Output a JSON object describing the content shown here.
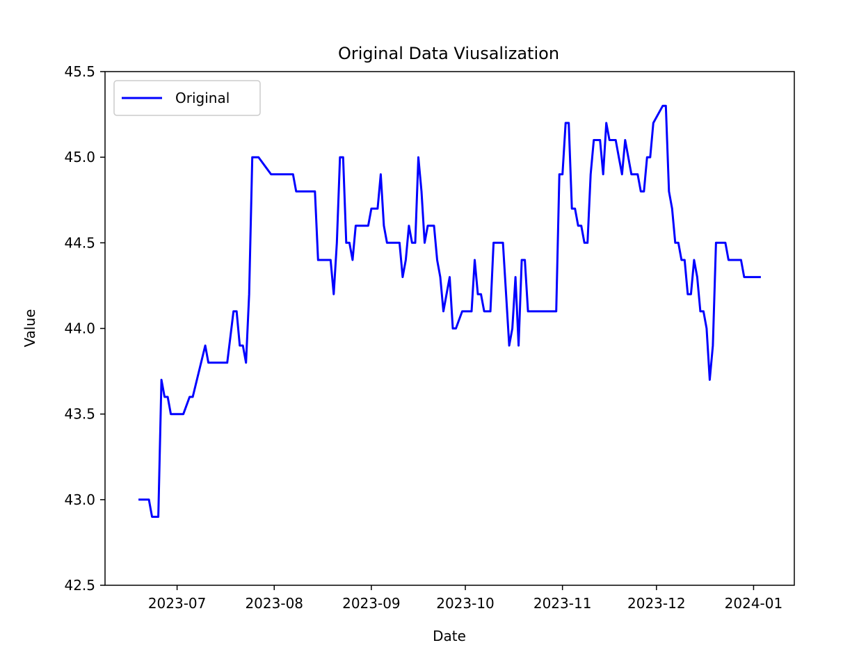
{
  "chart_data": {
    "type": "line",
    "title": "Original Data Viusalization",
    "xlabel": "Date",
    "ylabel": "Value",
    "ylim": [
      42.5,
      45.5
    ],
    "xlim": [
      "2023-06-08",
      "2024-01-14"
    ],
    "yticks": [
      42.5,
      43.0,
      43.5,
      44.0,
      44.5,
      45.0,
      45.5
    ],
    "ytick_labels": [
      "42.5",
      "43.0",
      "43.5",
      "44.0",
      "44.5",
      "45.0",
      "45.5"
    ],
    "xticks": [
      "2023-07-01",
      "2023-08-01",
      "2023-09-01",
      "2023-10-01",
      "2023-11-01",
      "2023-12-01",
      "2024-01-01"
    ],
    "xtick_labels": [
      "2023-07",
      "2023-08",
      "2023-09",
      "2023-10",
      "2023-11",
      "2023-12",
      "2024-01"
    ],
    "legend_position": "top-left",
    "grid": false,
    "series": [
      {
        "name": "Original",
        "color": "#0000ff",
        "x": [
          "2023-06-19",
          "2023-06-22",
          "2023-06-23",
          "2023-06-25",
          "2023-06-26",
          "2023-06-27",
          "2023-06-28",
          "2023-06-29",
          "2023-06-30",
          "2023-07-03",
          "2023-07-05",
          "2023-07-06",
          "2023-07-10",
          "2023-07-11",
          "2023-07-12",
          "2023-07-17",
          "2023-07-19",
          "2023-07-20",
          "2023-07-21",
          "2023-07-22",
          "2023-07-23",
          "2023-07-24",
          "2023-07-25",
          "2023-07-26",
          "2023-07-27",
          "2023-07-31",
          "2023-08-01",
          "2023-08-07",
          "2023-08-08",
          "2023-08-14",
          "2023-08-15",
          "2023-08-19",
          "2023-08-20",
          "2023-08-21",
          "2023-08-22",
          "2023-08-23",
          "2023-08-24",
          "2023-08-25",
          "2023-08-26",
          "2023-08-27",
          "2023-08-31",
          "2023-09-01",
          "2023-09-03",
          "2023-09-04",
          "2023-09-05",
          "2023-09-06",
          "2023-09-10",
          "2023-09-11",
          "2023-09-12",
          "2023-09-13",
          "2023-09-14",
          "2023-09-15",
          "2023-09-16",
          "2023-09-17",
          "2023-09-18",
          "2023-09-19",
          "2023-09-21",
          "2023-09-22",
          "2023-09-23",
          "2023-09-24",
          "2023-09-25",
          "2023-09-26",
          "2023-09-27",
          "2023-09-28",
          "2023-09-30",
          "2023-10-03",
          "2023-10-04",
          "2023-10-05",
          "2023-10-06",
          "2023-10-07",
          "2023-10-09",
          "2023-10-10",
          "2023-10-13",
          "2023-10-14",
          "2023-10-15",
          "2023-10-16",
          "2023-10-17",
          "2023-10-18",
          "2023-10-19",
          "2023-10-20",
          "2023-10-21",
          "2023-10-30",
          "2023-10-31",
          "2023-11-01",
          "2023-11-02",
          "2023-11-03",
          "2023-11-04",
          "2023-11-05",
          "2023-11-06",
          "2023-11-07",
          "2023-11-08",
          "2023-11-09",
          "2023-11-10",
          "2023-11-11",
          "2023-11-12",
          "2023-11-13",
          "2023-11-14",
          "2023-11-15",
          "2023-11-16",
          "2023-11-18",
          "2023-11-19",
          "2023-11-20",
          "2023-11-21",
          "2023-11-23",
          "2023-11-24",
          "2023-11-25",
          "2023-11-26",
          "2023-11-27",
          "2023-11-28",
          "2023-11-29",
          "2023-11-30",
          "2023-12-03",
          "2023-12-04",
          "2023-12-05",
          "2023-12-06",
          "2023-12-07",
          "2023-12-08",
          "2023-12-09",
          "2023-12-10",
          "2023-12-11",
          "2023-12-12",
          "2023-12-13",
          "2023-12-14",
          "2023-12-15",
          "2023-12-16",
          "2023-12-17",
          "2023-12-18",
          "2023-12-19",
          "2023-12-20",
          "2023-12-23",
          "2023-12-24",
          "2023-12-28",
          "2023-12-29",
          "2024-01-03"
        ],
        "y": [
          43.0,
          43.0,
          42.9,
          42.9,
          43.7,
          43.6,
          43.6,
          43.5,
          43.5,
          43.5,
          43.6,
          43.6,
          43.9,
          43.8,
          43.8,
          43.8,
          44.1,
          44.1,
          43.9,
          43.9,
          43.8,
          44.2,
          45.0,
          45.0,
          45.0,
          44.9,
          44.9,
          44.9,
          44.8,
          44.8,
          44.4,
          44.4,
          44.2,
          44.5,
          45.0,
          45.0,
          44.5,
          44.5,
          44.4,
          44.6,
          44.6,
          44.7,
          44.7,
          44.9,
          44.6,
          44.5,
          44.5,
          44.3,
          44.4,
          44.6,
          44.5,
          44.5,
          45.0,
          44.8,
          44.5,
          44.6,
          44.6,
          44.4,
          44.3,
          44.1,
          44.2,
          44.3,
          44.0,
          44.0,
          44.1,
          44.1,
          44.4,
          44.2,
          44.2,
          44.1,
          44.1,
          44.5,
          44.5,
          44.2,
          43.9,
          44.0,
          44.3,
          43.9,
          44.4,
          44.4,
          44.1,
          44.1,
          44.9,
          44.9,
          45.2,
          45.2,
          44.7,
          44.7,
          44.6,
          44.6,
          44.5,
          44.5,
          44.9,
          45.1,
          45.1,
          45.1,
          44.9,
          45.2,
          45.1,
          45.1,
          45.0,
          44.9,
          45.1,
          44.9,
          44.9,
          44.9,
          44.8,
          44.8,
          45.0,
          45.0,
          45.2,
          45.3,
          45.3,
          44.8,
          44.7,
          44.5,
          44.5,
          44.4,
          44.4,
          44.2,
          44.2,
          44.4,
          44.3,
          44.1,
          44.1,
          44.0,
          43.7,
          43.9,
          44.5,
          44.5,
          44.4,
          44.4,
          44.3,
          44.3
        ]
      }
    ]
  }
}
